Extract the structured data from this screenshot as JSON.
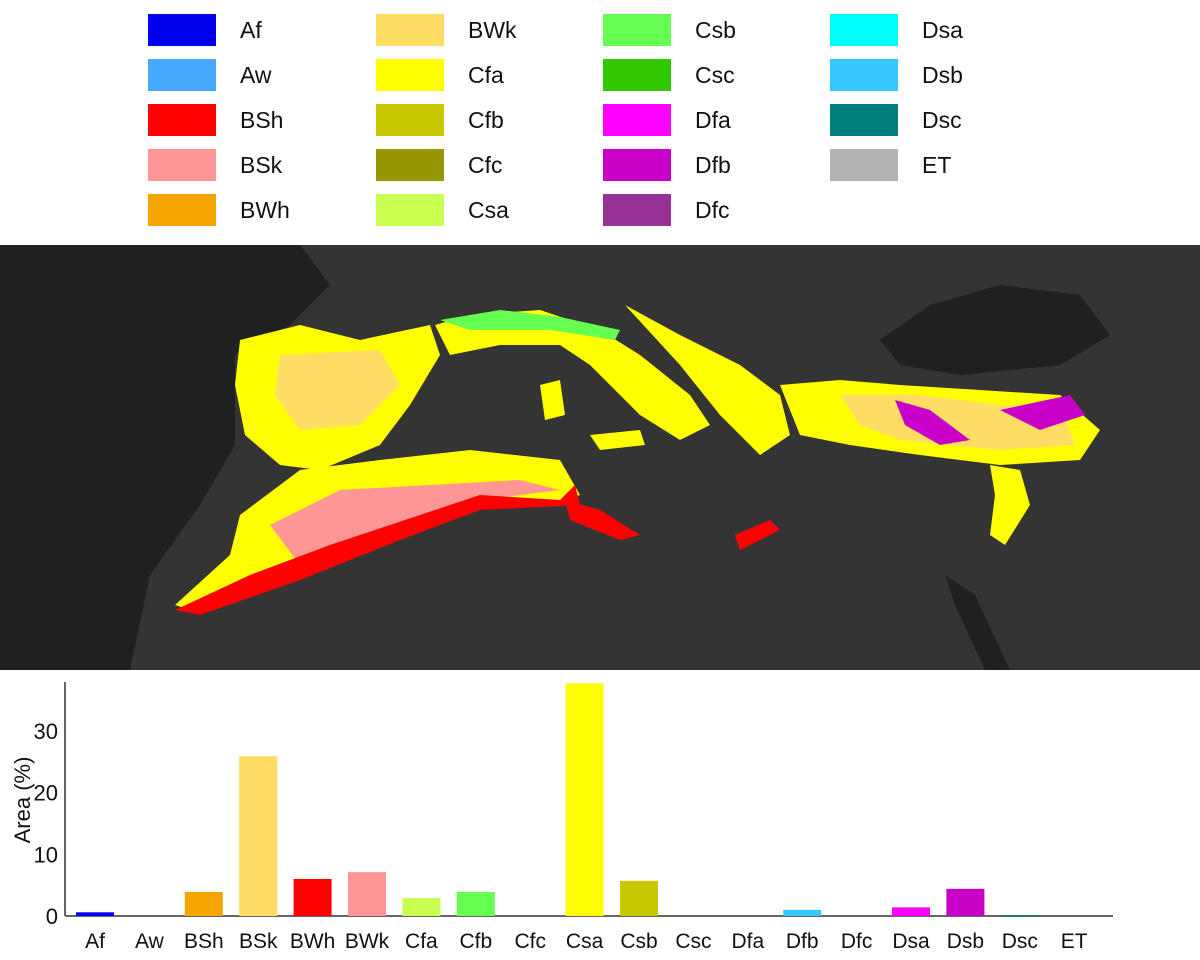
{
  "legend": [
    {
      "label": "Af",
      "color": "#0000ee"
    },
    {
      "label": "Aw",
      "color": "#46aaff"
    },
    {
      "label": "BSh",
      "color": "#ff0000"
    },
    {
      "label": "BSk",
      "color": "#ff9696"
    },
    {
      "label": "BWh",
      "color": "#f5a500"
    },
    {
      "label": "BWk",
      "color": "#ffdc64"
    },
    {
      "label": "Cfa",
      "color": "#ffff00"
    },
    {
      "label": "Cfb",
      "color": "#c8c800"
    },
    {
      "label": "Cfc",
      "color": "#969600"
    },
    {
      "label": "Csa",
      "color": "#c8ff50"
    },
    {
      "label": "Csb",
      "color": "#64ff50"
    },
    {
      "label": "Csc",
      "color": "#32c800"
    },
    {
      "label": "Dfa",
      "color": "#ff00ff"
    },
    {
      "label": "Dfb",
      "color": "#c800c8"
    },
    {
      "label": "Dfc",
      "color": "#963296"
    },
    {
      "label": "Dsa",
      "color": "#00ffff"
    },
    {
      "label": "Dsb",
      "color": "#37c8ff"
    },
    {
      "label": "Dsc",
      "color": "#007d7d"
    },
    {
      "label": "ET",
      "color": "#b2b2b2"
    }
  ],
  "chart_data": {
    "type": "bar",
    "title": "",
    "xlabel": "",
    "ylabel": "Area (%)",
    "ylim": [
      0,
      38
    ],
    "yticks": [
      0,
      10,
      20,
      30
    ],
    "categories": [
      "Af",
      "Aw",
      "BSh",
      "BSk",
      "BWh",
      "BWk",
      "Cfa",
      "Cfb",
      "Cfc",
      "Csa",
      "Csb",
      "Csc",
      "Dfa",
      "Dfb",
      "Dfc",
      "Dsa",
      "Dsb",
      "Dsc",
      "ET"
    ],
    "values": [
      0.6,
      0,
      3.9,
      25.9,
      6.0,
      7.1,
      2.9,
      3.9,
      0,
      37.7,
      5.7,
      0,
      0,
      1.0,
      0,
      1.4,
      4.4,
      0.1,
      0
    ],
    "colors": [
      "#0000ee",
      "#46aaff",
      "#f5a500",
      "#ffdc64",
      "#ff0000",
      "#ff9696",
      "#c8ff50",
      "#64ff50",
      "#969600",
      "#ffff00",
      "#c8c800",
      "#32c800",
      "#ff00ff",
      "#37c8ff",
      "#963296",
      "#ff00ff",
      "#c800c8",
      "#007d7d",
      "#b2b2b2"
    ]
  }
}
